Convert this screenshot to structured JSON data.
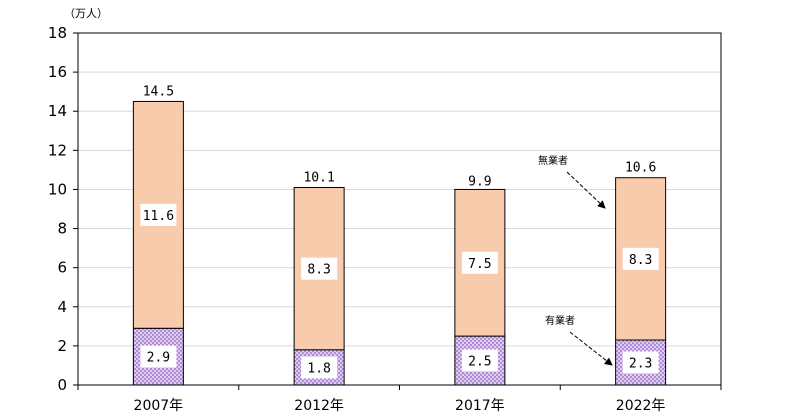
{
  "chart_data": {
    "type": "bar",
    "stacked": true,
    "unit_label": "（万人）",
    "categories": [
      "2007年",
      "2012年",
      "2017年",
      "2022年"
    ],
    "series": [
      {
        "name": "有業者",
        "values": [
          2.9,
          1.8,
          2.5,
          2.3
        ],
        "labels": [
          "2.9",
          "1.8",
          "2.5",
          "2.3"
        ],
        "color": "#b28bd8",
        "pattern": "dots"
      },
      {
        "name": "無業者",
        "values": [
          11.6,
          8.3,
          7.5,
          8.3
        ],
        "labels": [
          "11.6",
          "8.3",
          "7.5",
          "8.3"
        ],
        "color": "#f8cbad"
      }
    ],
    "totals": [
      14.5,
      10.1,
      9.9,
      10.6
    ],
    "total_labels": [
      "14.5",
      "10.1",
      "9.9",
      "10.6"
    ],
    "ylim": [
      0,
      18
    ],
    "yticks": [
      0,
      2,
      4,
      6,
      8,
      10,
      12,
      14,
      16,
      18
    ],
    "grid": true,
    "annotations": [
      "無業者",
      "有業者"
    ]
  }
}
